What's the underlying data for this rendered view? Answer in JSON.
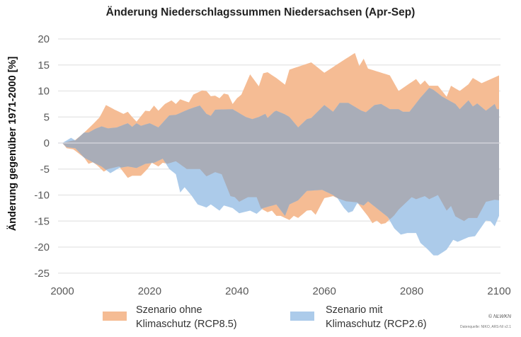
{
  "chart_data": {
    "type": "area",
    "title": "Änderung Niederschlagssummen Niedersachsen (Apr-Sep)",
    "xlabel": "",
    "ylabel": "Änderung gegenüber 1971-2000 [%]",
    "xlim": [
      2000,
      2100
    ],
    "ylim": [
      -25,
      20
    ],
    "xticks": [
      2000,
      2020,
      2040,
      2060,
      2080,
      2100
    ],
    "yticks": [
      -25,
      -20,
      -15,
      -10,
      -5,
      0,
      5,
      10,
      15,
      20
    ],
    "grid": true,
    "legend_position": "bottom",
    "colors": {
      "rcp85": "#F5BC94",
      "rcp26": "#ACCBEA",
      "overlap": "#A9ADB8"
    },
    "series": [
      {
        "name": "Szenario ohne Klimaschutz (RCP8.5)",
        "upper": [
          [
            2000,
            0
          ],
          [
            2003,
            0.6
          ],
          [
            2005,
            2
          ],
          [
            2007,
            3.6
          ],
          [
            2008.6,
            5
          ],
          [
            2010,
            7.3
          ],
          [
            2012,
            6.4
          ],
          [
            2014,
            5.6
          ],
          [
            2015,
            6
          ],
          [
            2016,
            5
          ],
          [
            2017,
            4.1
          ],
          [
            2019,
            6.2
          ],
          [
            2020,
            6.1
          ],
          [
            2021,
            7.2
          ],
          [
            2022,
            6.2
          ],
          [
            2023.5,
            7.5
          ],
          [
            2025,
            8.2
          ],
          [
            2026,
            7.5
          ],
          [
            2027,
            8.4
          ],
          [
            2029,
            7.8
          ],
          [
            2030,
            9.3
          ],
          [
            2032,
            10.1
          ],
          [
            2033,
            10
          ],
          [
            2034,
            9
          ],
          [
            2035,
            9.1
          ],
          [
            2036,
            8.6
          ],
          [
            2037,
            9.5
          ],
          [
            2038,
            9.3
          ],
          [
            2039,
            7.5
          ],
          [
            2040,
            8.6
          ],
          [
            2041,
            9.3
          ],
          [
            2043,
            13.2
          ],
          [
            2045,
            10.9
          ],
          [
            2046,
            13.4
          ],
          [
            2047,
            13.6
          ],
          [
            2049,
            12.5
          ],
          [
            2051,
            11.2
          ],
          [
            2052,
            14.1
          ],
          [
            2057,
            15.5
          ],
          [
            2060,
            13.5
          ],
          [
            2064,
            15.7
          ],
          [
            2067,
            17.3
          ],
          [
            2068,
            14.8
          ],
          [
            2069,
            16.2
          ],
          [
            2070,
            14.3
          ],
          [
            2075,
            13
          ],
          [
            2077,
            10
          ],
          [
            2081,
            12.3
          ],
          [
            2082,
            11.2
          ],
          [
            2083,
            12
          ],
          [
            2084,
            11
          ],
          [
            2086,
            11
          ],
          [
            2088,
            8.9
          ],
          [
            2089,
            11
          ],
          [
            2091,
            10
          ],
          [
            2093,
            11.3
          ],
          [
            2094,
            12.5
          ],
          [
            2096,
            11.5
          ],
          [
            2100,
            13
          ]
        ],
        "lower": [
          [
            2000,
            0
          ],
          [
            2001,
            -1
          ],
          [
            2002.5,
            -1.2
          ],
          [
            2005,
            -2.8
          ],
          [
            2006,
            -4
          ],
          [
            2007,
            -3.7
          ],
          [
            2008,
            -4.3
          ],
          [
            2009.5,
            -5.5
          ],
          [
            2010.5,
            -5
          ],
          [
            2013,
            -4.5
          ],
          [
            2015,
            -6.7
          ],
          [
            2016,
            -6.3
          ],
          [
            2018,
            -6.3
          ],
          [
            2019.5,
            -5
          ],
          [
            2020.5,
            -3.8
          ],
          [
            2022,
            -4.5
          ],
          [
            2023,
            -3.8
          ],
          [
            2024,
            -4
          ],
          [
            2026,
            -3.5
          ],
          [
            2028.5,
            -5
          ],
          [
            2031.5,
            -5
          ],
          [
            2033,
            -6.4
          ],
          [
            2035,
            -5.6
          ],
          [
            2036.5,
            -6
          ],
          [
            2038.5,
            -10.2
          ],
          [
            2039.5,
            -10.4
          ],
          [
            2040.5,
            -11.3
          ],
          [
            2042.5,
            -10.4
          ],
          [
            2044.5,
            -10.4
          ],
          [
            2045.5,
            -12.6
          ],
          [
            2047,
            -13.3
          ],
          [
            2048,
            -13
          ],
          [
            2049,
            -14
          ],
          [
            2050,
            -14
          ],
          [
            2052,
            -14.8
          ],
          [
            2053,
            -14
          ],
          [
            2054,
            -14.4
          ],
          [
            2056,
            -13
          ],
          [
            2057,
            -12.9
          ],
          [
            2058,
            -13.8
          ],
          [
            2060,
            -10.6
          ],
          [
            2062,
            -10.2
          ],
          [
            2063,
            -10.6
          ],
          [
            2065,
            -11.2
          ],
          [
            2067.5,
            -11.4
          ],
          [
            2070,
            -14.1
          ],
          [
            2071,
            -15.4
          ],
          [
            2072,
            -14.9
          ],
          [
            2073,
            -15.6
          ],
          [
            2074,
            -15.4
          ],
          [
            2075.5,
            -14.3
          ],
          [
            2076,
            -13.9
          ],
          [
            2077,
            -12.8
          ],
          [
            2080,
            -10.4
          ],
          [
            2081,
            -10.8
          ],
          [
            2083,
            -10.2
          ],
          [
            2084,
            -10.8
          ],
          [
            2086,
            -10
          ],
          [
            2088,
            -13
          ],
          [
            2089,
            -12.1
          ],
          [
            2090,
            -14.1
          ],
          [
            2092,
            -15
          ],
          [
            2093,
            -14.4
          ],
          [
            2095,
            -14.4
          ],
          [
            2097,
            -11.3
          ],
          [
            2099,
            -10.9
          ],
          [
            2100,
            -11
          ]
        ]
      },
      {
        "name": "Szenario mit Klimaschutz (RCP2.6)",
        "upper": [
          [
            2000,
            0
          ],
          [
            2002,
            1
          ],
          [
            2003,
            0.5
          ],
          [
            2005,
            2
          ],
          [
            2006,
            2
          ],
          [
            2007.5,
            2.7
          ],
          [
            2009,
            3.2
          ],
          [
            2010.5,
            2.8
          ],
          [
            2012.5,
            3
          ],
          [
            2015,
            3.8
          ],
          [
            2016,
            3.1
          ],
          [
            2017,
            3.8
          ],
          [
            2018,
            3.3
          ],
          [
            2020,
            3.8
          ],
          [
            2022,
            3
          ],
          [
            2024.5,
            5.3
          ],
          [
            2026,
            5.4
          ],
          [
            2029,
            6.5
          ],
          [
            2031.5,
            7.2
          ],
          [
            2033,
            5.6
          ],
          [
            2034,
            5.2
          ],
          [
            2035,
            6.4
          ],
          [
            2039,
            6.5
          ],
          [
            2042,
            5
          ],
          [
            2043.5,
            4.6
          ],
          [
            2045,
            5
          ],
          [
            2046.5,
            5.6
          ],
          [
            2047,
            4.8
          ],
          [
            2048.5,
            6
          ],
          [
            2049,
            6.2
          ],
          [
            2051,
            5.5
          ],
          [
            2052,
            5
          ],
          [
            2054,
            3
          ],
          [
            2056,
            4.6
          ],
          [
            2057,
            4.8
          ],
          [
            2060,
            7.3
          ],
          [
            2062,
            6
          ],
          [
            2063.5,
            7.7
          ],
          [
            2065.5,
            7.7
          ],
          [
            2068.5,
            6.2
          ],
          [
            2069.5,
            5.9
          ],
          [
            2071.5,
            7.3
          ],
          [
            2073,
            7.5
          ],
          [
            2075,
            6.5
          ],
          [
            2077,
            6.5
          ],
          [
            2078,
            6
          ],
          [
            2079.5,
            6
          ],
          [
            2082,
            8.7
          ],
          [
            2084,
            10.6
          ],
          [
            2085,
            10.2
          ],
          [
            2087,
            8.9
          ],
          [
            2090,
            7.5
          ],
          [
            2091,
            6.5
          ],
          [
            2093,
            8.2
          ],
          [
            2094,
            7
          ],
          [
            2095,
            7.6
          ],
          [
            2097,
            6.2
          ],
          [
            2099,
            7.5
          ],
          [
            2099.5,
            6.5
          ],
          [
            2100,
            6.5
          ]
        ],
        "lower": [
          [
            2000,
            0
          ],
          [
            2001,
            -0.8
          ],
          [
            2003,
            -1
          ],
          [
            2005,
            -2.8
          ],
          [
            2007,
            -3.7
          ],
          [
            2009,
            -4.5
          ],
          [
            2011,
            -5.8
          ],
          [
            2013,
            -4.8
          ],
          [
            2015,
            -4.5
          ],
          [
            2017,
            -4.8
          ],
          [
            2019,
            -4
          ],
          [
            2021,
            -3.8
          ],
          [
            2023,
            -3
          ],
          [
            2024.5,
            -5
          ],
          [
            2026,
            -6
          ],
          [
            2027,
            -9.5
          ],
          [
            2028,
            -8.5
          ],
          [
            2029.5,
            -10
          ],
          [
            2031,
            -11.8
          ],
          [
            2033,
            -12.4
          ],
          [
            2034,
            -11.8
          ],
          [
            2036,
            -13
          ],
          [
            2037,
            -12
          ],
          [
            2039,
            -12.5
          ],
          [
            2040.5,
            -13.5
          ],
          [
            2043,
            -13
          ],
          [
            2044.5,
            -13.6
          ],
          [
            2046,
            -12.5
          ],
          [
            2049,
            -11.8
          ],
          [
            2051,
            -14
          ],
          [
            2052,
            -11.8
          ],
          [
            2054,
            -11
          ],
          [
            2056,
            -9.2
          ],
          [
            2059.5,
            -9
          ],
          [
            2062,
            -10
          ],
          [
            2063,
            -10.6
          ],
          [
            2064.5,
            -12.5
          ],
          [
            2065.5,
            -13.4
          ],
          [
            2066.5,
            -13.1
          ],
          [
            2067.5,
            -11.6
          ],
          [
            2069,
            -12
          ],
          [
            2070,
            -11.2
          ],
          [
            2071.5,
            -12.2
          ],
          [
            2074.5,
            -14.2
          ],
          [
            2076,
            -16.4
          ],
          [
            2077.5,
            -17.6
          ],
          [
            2079,
            -17.3
          ],
          [
            2081,
            -17.3
          ],
          [
            2082,
            -19.2
          ],
          [
            2083.5,
            -20.3
          ],
          [
            2085,
            -21.6
          ],
          [
            2086,
            -21.6
          ],
          [
            2088,
            -20.5
          ],
          [
            2089.5,
            -18.6
          ],
          [
            2090.5,
            -19
          ],
          [
            2093,
            -18.1
          ],
          [
            2094.5,
            -17.9
          ],
          [
            2096,
            -16.1
          ],
          [
            2097,
            -14.9
          ],
          [
            2098,
            -15
          ],
          [
            2099,
            -16
          ],
          [
            2100,
            -14
          ]
        ]
      }
    ]
  },
  "legend": {
    "rcp85_line1": "Szenario ohne",
    "rcp85_line2": "Klimaschutz (RCP8.5)",
    "rcp26_line1": "Szenario mit",
    "rcp26_line2": "Klimaschutz (RCP2.6)"
  },
  "footer": {
    "copyright": "© NLWKN",
    "source": "Datenquelle: NIKO, ARS-NI v2.1"
  }
}
